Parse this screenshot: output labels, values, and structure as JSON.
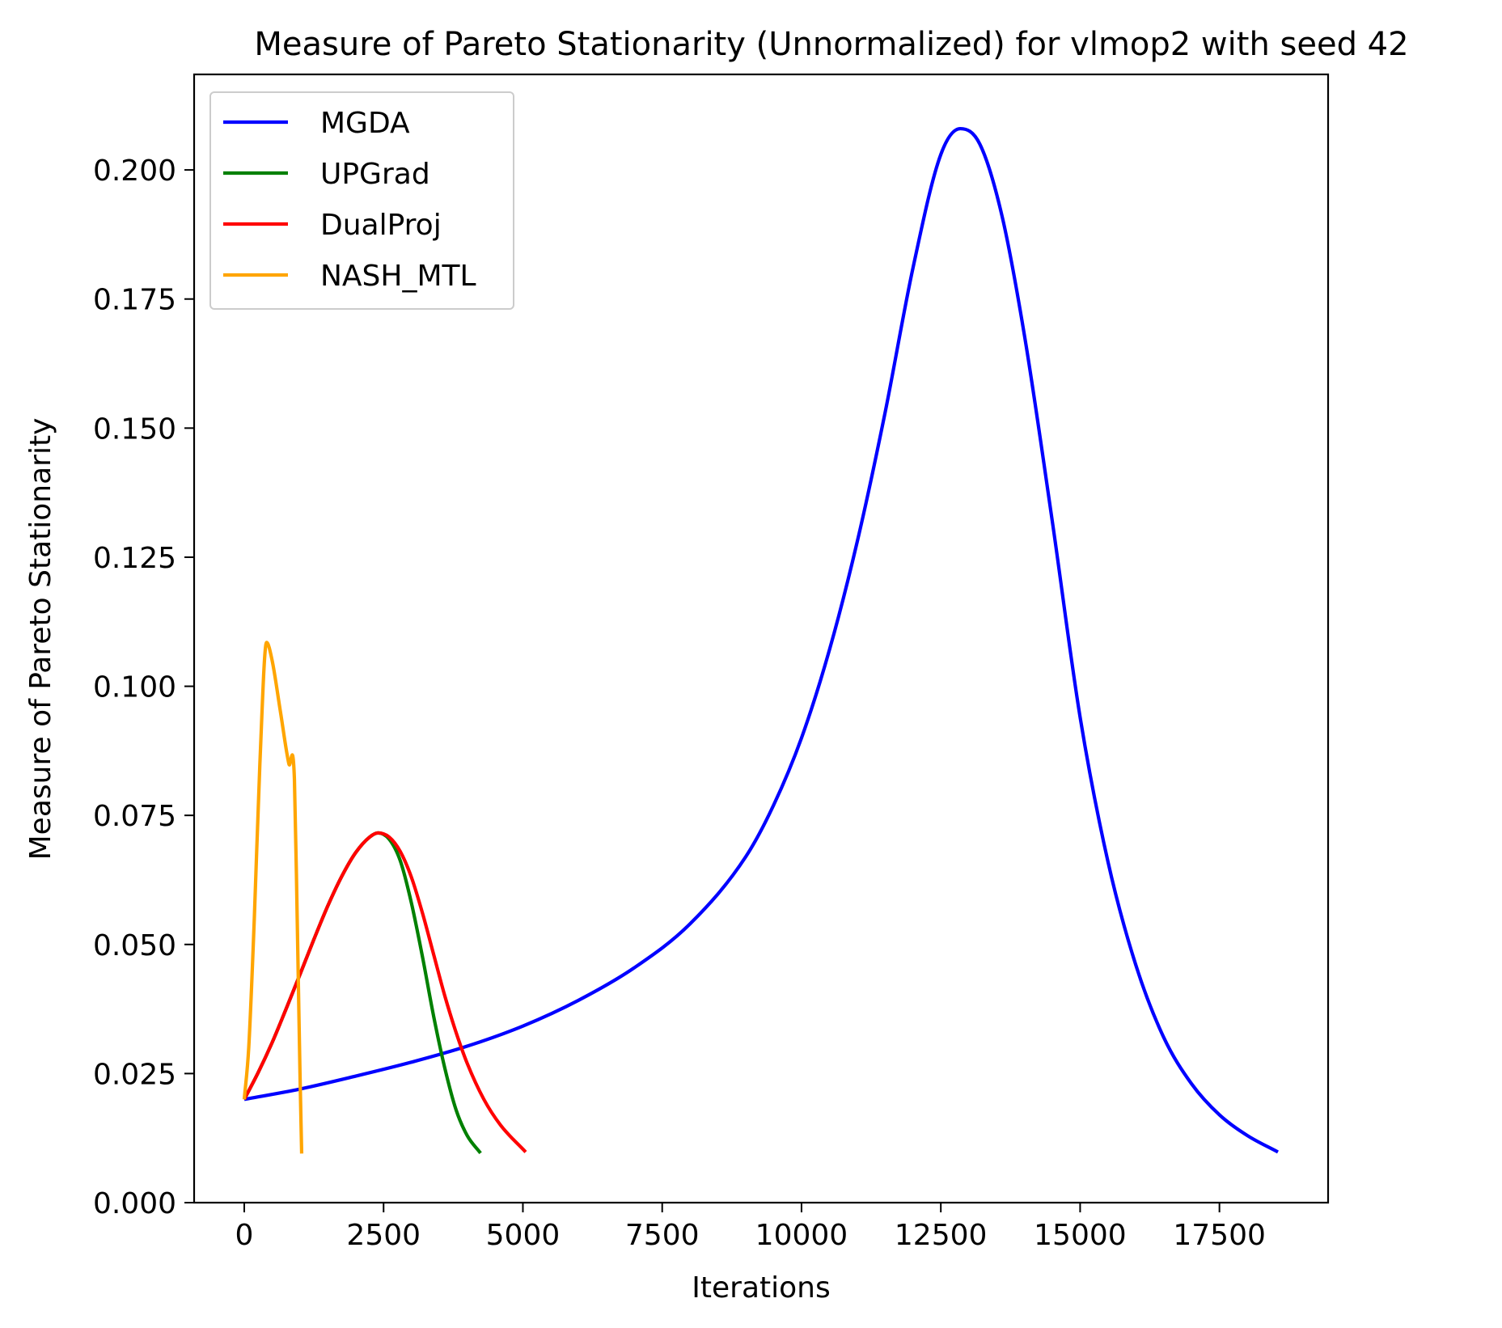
{
  "chart_data": {
    "type": "line",
    "title": "Measure of Pareto Stationarity (Unnormalized) for vlmop2 with seed 42",
    "xlabel": "Iterations",
    "ylabel": "Measure of Pareto Stationarity",
    "xlim": [
      -900,
      19450
    ],
    "ylim": [
      0,
      0.2185
    ],
    "xticks": [
      0,
      2500,
      5000,
      7500,
      10000,
      12500,
      15000,
      17500
    ],
    "xtick_labels": [
      "0",
      "2500",
      "5000",
      "7500",
      "10000",
      "12500",
      "15000",
      "17500"
    ],
    "yticks": [
      0,
      0.025,
      0.05,
      0.075,
      0.1,
      0.125,
      0.15,
      0.175,
      0.2
    ],
    "ytick_labels": [
      "0.000",
      "0.025",
      "0.050",
      "0.075",
      "0.100",
      "0.125",
      "0.150",
      "0.175",
      "0.200"
    ],
    "grid": false,
    "legend_position": "upper-left",
    "series": [
      {
        "name": "MGDA",
        "color": "#0000ff",
        "x": [
          0,
          1000,
          2000,
          3000,
          4000,
          5000,
          6000,
          7000,
          8000,
          9000,
          9500,
          10000,
          10500,
          11000,
          11500,
          12000,
          12500,
          12850,
          13200,
          13600,
          14000,
          14500,
          15000,
          15500,
          16000,
          16500,
          17000,
          17500,
          18000,
          18550
        ],
        "values": [
          0.02,
          0.022,
          0.0245,
          0.0272,
          0.0303,
          0.0342,
          0.0392,
          0.0455,
          0.054,
          0.067,
          0.077,
          0.09,
          0.107,
          0.128,
          0.153,
          0.181,
          0.203,
          0.208,
          0.205,
          0.191,
          0.168,
          0.132,
          0.094,
          0.066,
          0.046,
          0.032,
          0.023,
          0.017,
          0.013,
          0.0098
        ]
      },
      {
        "name": "UPGrad",
        "color": "#008000",
        "x": [
          0,
          250,
          500,
          750,
          1000,
          1250,
          1500,
          1750,
          2000,
          2250,
          2400,
          2600,
          2800,
          3000,
          3200,
          3400,
          3600,
          3800,
          4000,
          4240
        ],
        "values": [
          0.02,
          0.0252,
          0.031,
          0.0375,
          0.0442,
          0.051,
          0.0575,
          0.0632,
          0.0678,
          0.0708,
          0.0716,
          0.0704,
          0.0662,
          0.058,
          0.0475,
          0.036,
          0.026,
          0.018,
          0.013,
          0.0096
        ]
      },
      {
        "name": "DualProj",
        "color": "#ff0000",
        "x": [
          0,
          250,
          500,
          750,
          1000,
          1250,
          1500,
          1750,
          2000,
          2250,
          2400,
          2600,
          2800,
          3000,
          3200,
          3400,
          3600,
          3800,
          4000,
          4300,
          4600,
          5050
        ],
        "values": [
          0.02,
          0.0252,
          0.031,
          0.0375,
          0.0442,
          0.051,
          0.0575,
          0.0632,
          0.0678,
          0.0708,
          0.0716,
          0.0708,
          0.068,
          0.063,
          0.056,
          0.048,
          0.04,
          0.033,
          0.027,
          0.02,
          0.015,
          0.0098
        ]
      },
      {
        "name": "NASH_MTL",
        "color": "#ffa500",
        "x": [
          0,
          80,
          180,
          280,
          400,
          500,
          650,
          800,
          900,
          950,
          1000,
          1030
        ],
        "values": [
          0.02,
          0.03,
          0.055,
          0.085,
          0.1085,
          0.105,
          0.095,
          0.085,
          0.082,
          0.055,
          0.025,
          0.0095
        ]
      }
    ]
  }
}
